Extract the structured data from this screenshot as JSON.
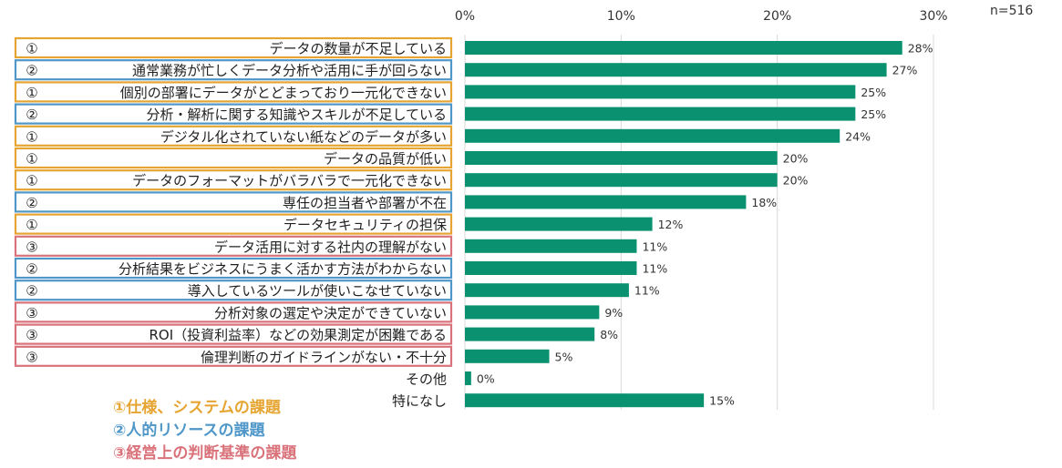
{
  "n_label": "n=516",
  "colors": {
    "bar": "#0a9270",
    "group1": "#e6a532",
    "group2": "#4f97c8",
    "group3": "#d9727a",
    "grid": "#d9d9d9"
  },
  "legend": [
    {
      "text": "①仕様、システムの課題",
      "group": 1
    },
    {
      "text": "②人的リソースの課題",
      "group": 2
    },
    {
      "text": "③経営上の判断基準の課題",
      "group": 3
    }
  ],
  "chart_data": {
    "type": "bar",
    "orientation": "horizontal",
    "xlim": [
      0,
      30
    ],
    "ticks": [
      "0%",
      "10%",
      "20%",
      "30%"
    ],
    "tick_values": [
      0,
      10,
      20,
      30
    ],
    "grid": true,
    "categories": [
      {
        "marker": "①",
        "label": "データの数量が不足している",
        "group": 1,
        "value": 28,
        "value_label": "28%"
      },
      {
        "marker": "②",
        "label": "通常業務が忙しくデータ分析や活用に手が回らない",
        "group": 2,
        "value": 27,
        "value_label": "27%"
      },
      {
        "marker": "①",
        "label": "個別の部署にデータがとどまっており一元化できない",
        "group": 1,
        "value": 25,
        "value_label": "25%"
      },
      {
        "marker": "②",
        "label": "分析・解析に関する知識やスキルが不足している",
        "group": 2,
        "value": 25,
        "value_label": "25%"
      },
      {
        "marker": "①",
        "label": "デジタル化されていない紙などのデータが多い",
        "group": 1,
        "value": 24,
        "value_label": "24%"
      },
      {
        "marker": "①",
        "label": "データの品質が低い",
        "group": 1,
        "value": 20,
        "value_label": "20%"
      },
      {
        "marker": "①",
        "label": "データのフォーマットがバラバラで一元化できない",
        "group": 1,
        "value": 20,
        "value_label": "20%"
      },
      {
        "marker": "②",
        "label": "専任の担当者や部署が不在",
        "group": 2,
        "value": 18,
        "value_label": "18%"
      },
      {
        "marker": "①",
        "label": "データセキュリティの担保",
        "group": 1,
        "value": 12,
        "value_label": "12%"
      },
      {
        "marker": "③",
        "label": "データ活用に対する社内の理解がない",
        "group": 3,
        "value": 11,
        "value_label": "11%"
      },
      {
        "marker": "②",
        "label": "分析結果をビジネスにうまく活かす方法がわからない",
        "group": 2,
        "value": 11,
        "value_label": "11%"
      },
      {
        "marker": "②",
        "label": "導入しているツールが使いこなせていない",
        "group": 2,
        "value": 10.5,
        "value_label": "11%"
      },
      {
        "marker": "③",
        "label": "分析対象の選定や決定ができていない",
        "group": 3,
        "value": 8.6,
        "value_label": "9%"
      },
      {
        "marker": "③",
        "label": "ROI（投資利益率）などの効果測定が困難である",
        "group": 3,
        "value": 8.3,
        "value_label": "8%"
      },
      {
        "marker": "③",
        "label": "倫理判断のガイドラインがない・不十分",
        "group": 3,
        "value": 5.4,
        "value_label": "5%"
      },
      {
        "marker": "",
        "label": "その他",
        "group": 0,
        "value": 0.4,
        "value_label": "0%"
      },
      {
        "marker": "",
        "label": "特になし",
        "group": 0,
        "value": 15.3,
        "value_label": "15%"
      }
    ]
  }
}
